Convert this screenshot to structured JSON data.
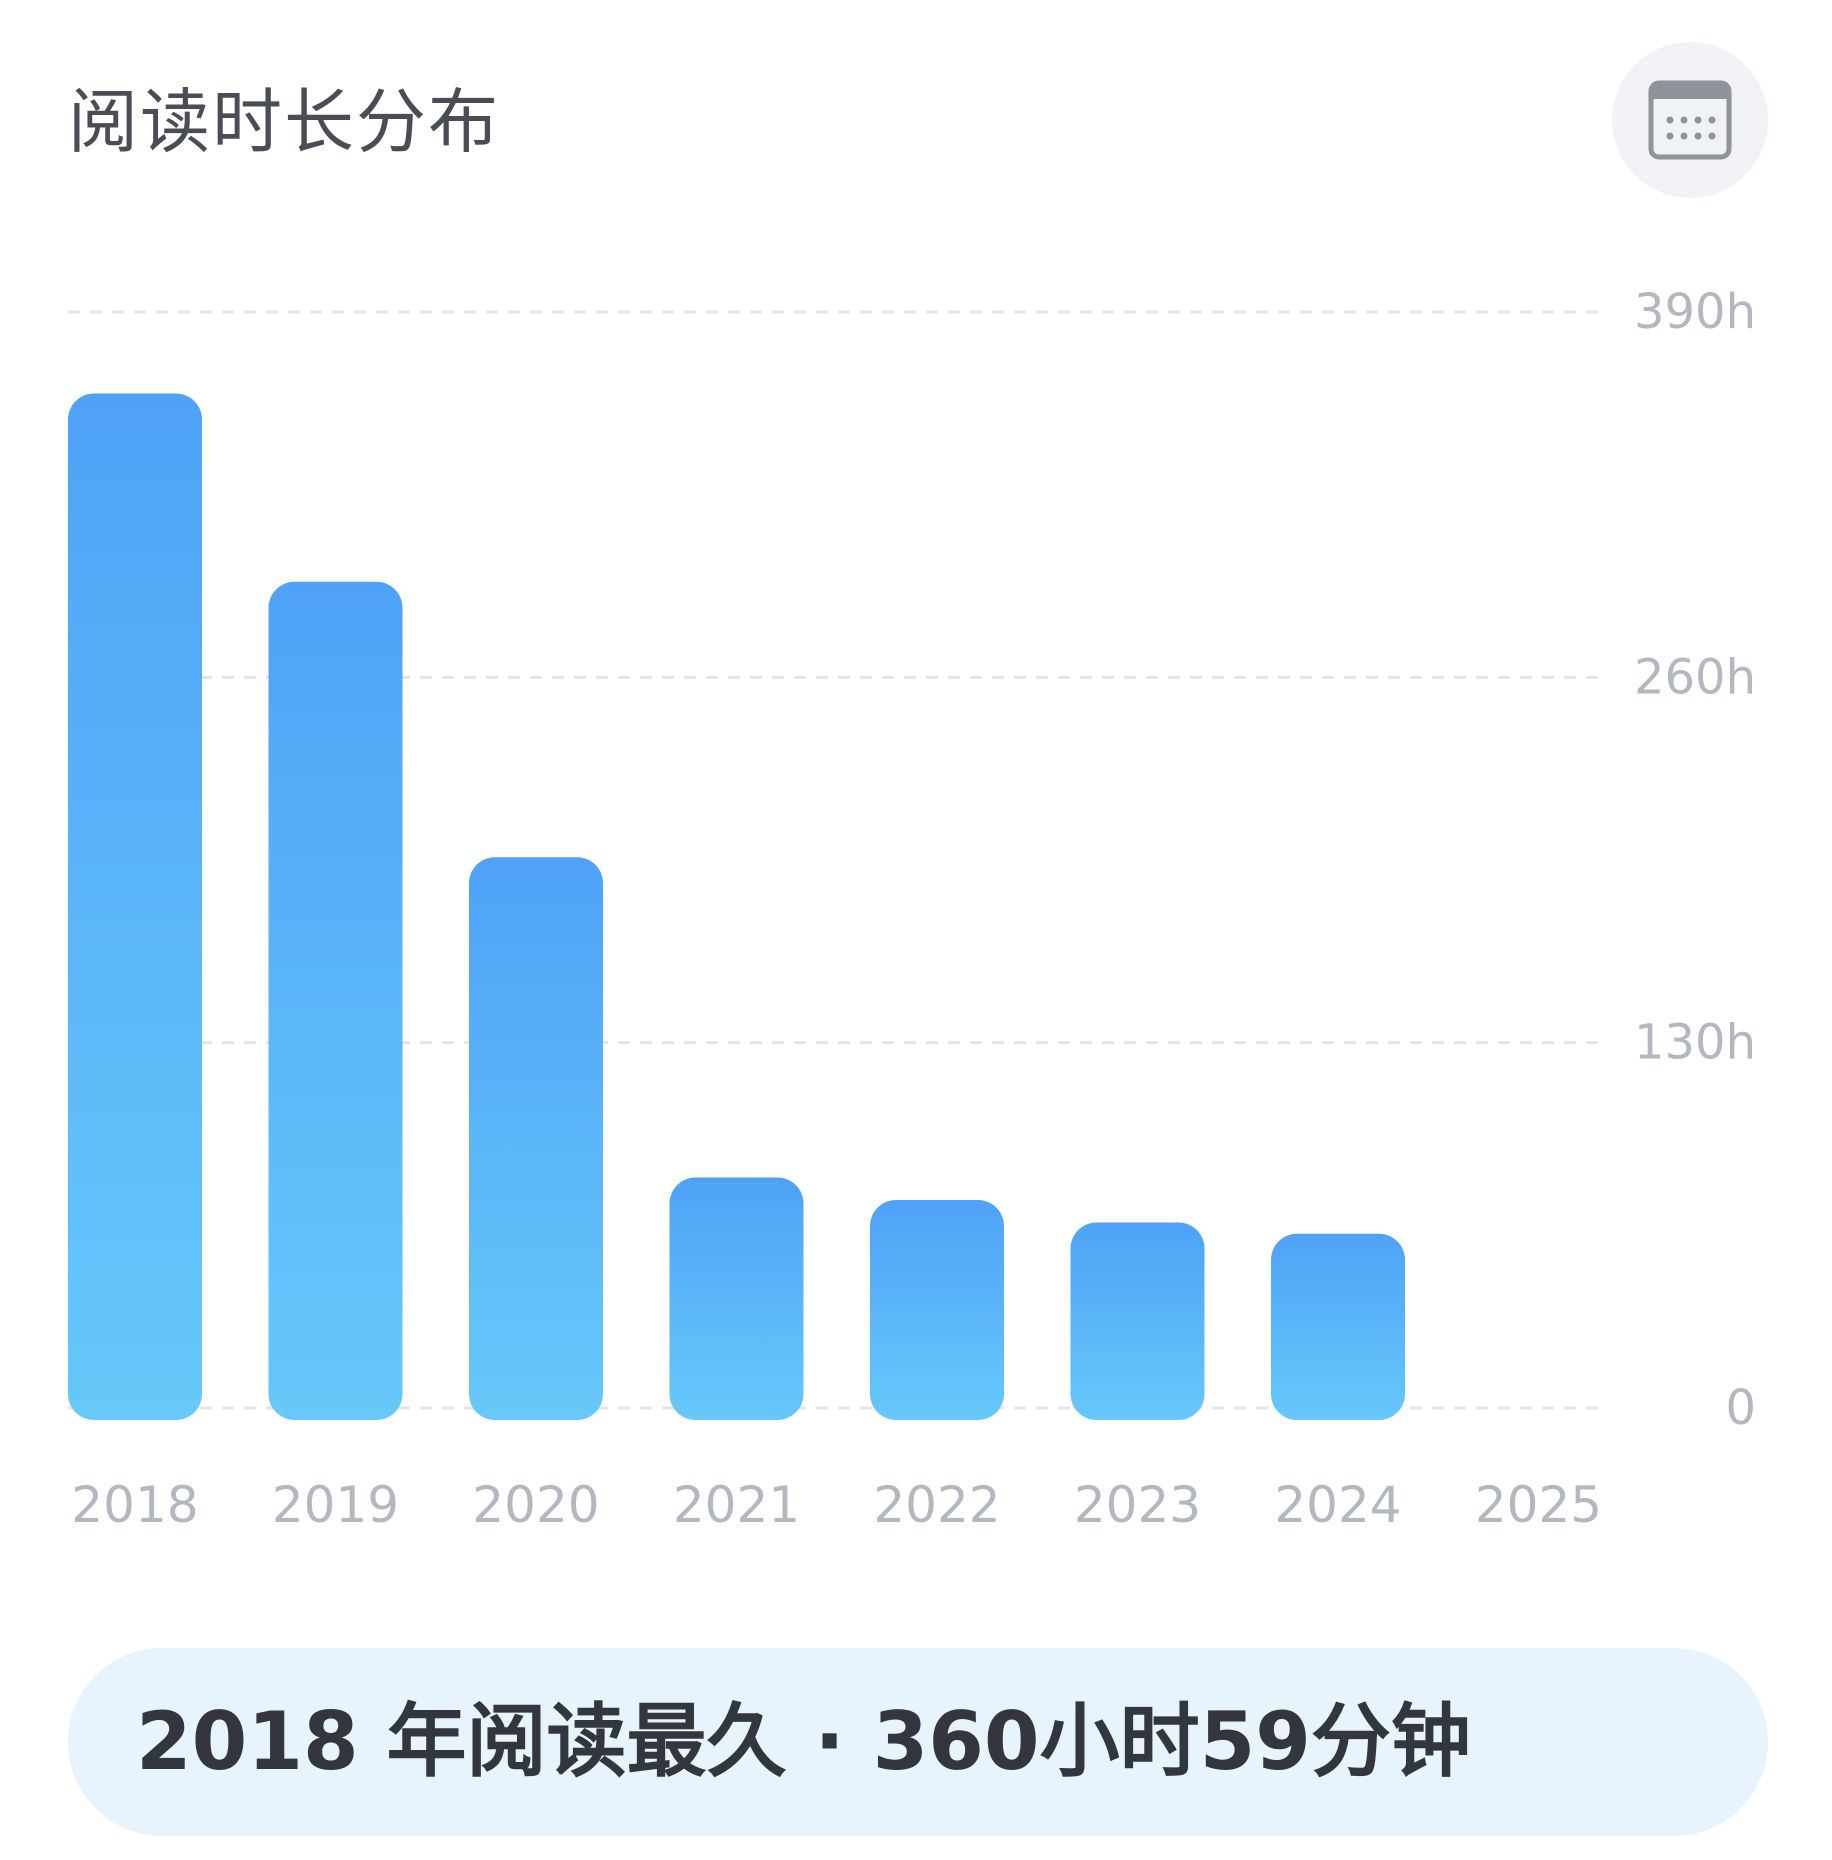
{
  "header": {
    "title": "阅读时长分布"
  },
  "icons": {
    "calendar": "calendar-icon"
  },
  "colors": {
    "bar_top": "#4fa2f7",
    "bar_bottom": "#67c8f9",
    "grid": "#e3e5e9",
    "tick_text": "#b3b7bf",
    "title_text": "#4a4d55",
    "summary_bg": "#e7f4fd",
    "summary_text": "#33363c"
  },
  "chart_data": {
    "type": "bar",
    "categories": [
      "2018",
      "2019",
      "2020",
      "2021",
      "2022",
      "2023",
      "2024",
      "2025"
    ],
    "values": [
      361,
      294,
      196,
      82,
      74,
      66,
      62,
      0
    ],
    "y_ticks": [
      "0",
      "130h",
      "260h",
      "390h"
    ],
    "y_tick_values": [
      0,
      130,
      260,
      390
    ],
    "ylim": [
      0,
      390
    ],
    "y_axis_position": "right",
    "grid": true,
    "grid_style": "dashed",
    "title": "",
    "xlabel": "",
    "ylabel": ""
  },
  "summary": {
    "text": "2018 年阅读最久 · 360小时59分钟"
  }
}
